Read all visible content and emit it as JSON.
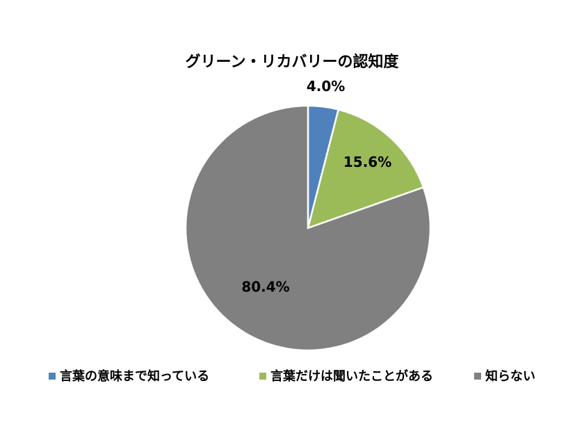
{
  "chart_data": {
    "type": "pie",
    "title": "グリーン・リカバリーの認知度",
    "categories": [
      "言葉の意味まで知っている",
      "言葉だけは聞いたことがある",
      "知らない"
    ],
    "values": [
      4.0,
      15.6,
      80.4
    ],
    "value_labels": [
      "4.0%",
      "15.6%",
      "80.4%"
    ],
    "colors": [
      "#4f81bd",
      "#9bbb59",
      "#808080"
    ],
    "legend": "bottom"
  }
}
